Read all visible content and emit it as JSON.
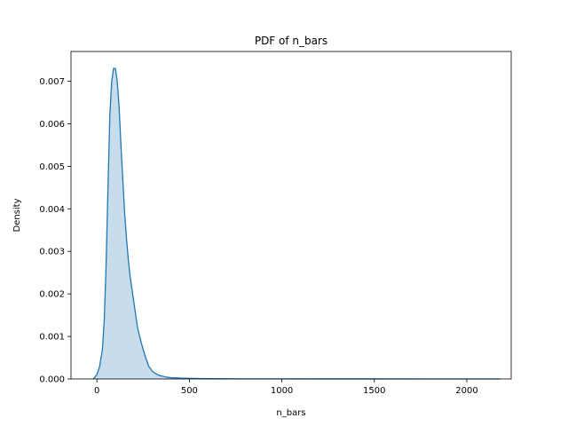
{
  "chart_data": {
    "type": "area",
    "title": "PDF of n_bars",
    "xlabel": "n_bars",
    "ylabel": "Density",
    "xlim": [
      -140,
      2240
    ],
    "ylim": [
      0,
      0.0077
    ],
    "x_ticks": [
      0,
      500,
      1000,
      1500,
      2000
    ],
    "y_ticks": [
      0,
      0.001,
      0.002,
      0.003,
      0.004,
      0.005,
      0.006,
      0.007
    ],
    "x_tick_labels": [
      "0",
      "500",
      "1000",
      "1500",
      "2000"
    ],
    "y_tick_labels": [
      "0.000",
      "0.001",
      "0.002",
      "0.003",
      "0.004",
      "0.005",
      "0.006",
      "0.007"
    ],
    "grid": false,
    "legend": "none",
    "series": [
      {
        "color": "#1f77b4",
        "fill_color": "#1f77b4",
        "fill_opacity": 0.25,
        "x": [
          -20,
          0,
          15,
          30,
          40,
          50,
          60,
          70,
          80,
          90,
          100,
          110,
          120,
          130,
          140,
          150,
          160,
          170,
          180,
          190,
          200,
          210,
          220,
          240,
          260,
          280,
          300,
          320,
          340,
          360,
          380,
          400,
          450,
          500,
          550,
          600,
          700,
          800,
          900,
          1000,
          1200,
          1500,
          1800,
          2000,
          2180
        ],
        "y": [
          0.0,
          0.0001,
          0.0003,
          0.0007,
          0.0014,
          0.0027,
          0.0045,
          0.0062,
          0.007,
          0.0073,
          0.0073,
          0.007,
          0.0064,
          0.0055,
          0.0047,
          0.0039,
          0.0033,
          0.0028,
          0.0024,
          0.0021,
          0.0018,
          0.0015,
          0.0012,
          0.00085,
          0.00055,
          0.0003,
          0.00018,
          0.00012,
          8e-05,
          6e-05,
          4e-05,
          3e-05,
          2e-05,
          1.5e-05,
          1e-05,
          6e-06,
          4e-06,
          3e-06,
          2e-06,
          2e-06,
          1e-06,
          1e-06,
          5e-07,
          3e-07,
          0.0
        ]
      }
    ]
  }
}
